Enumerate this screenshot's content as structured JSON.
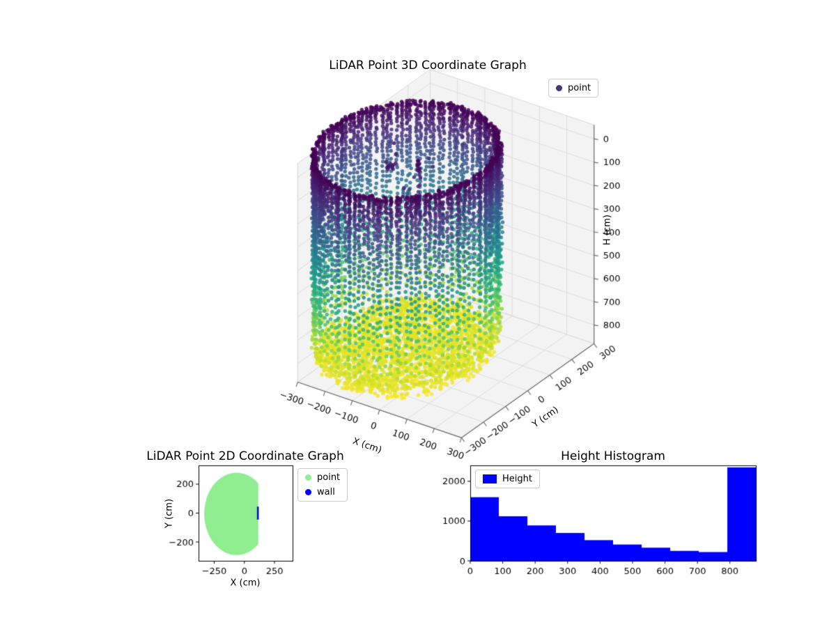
{
  "figure": {
    "background": "#ffffff"
  },
  "chart_data": [
    {
      "id": "lidar-3d",
      "type": "scatter3d",
      "title": "LiDAR Point 3D Coordinate Graph",
      "xlabel": "X (cm)",
      "ylabel": "Y (cm)",
      "zlabel": "H (cm)",
      "xticks": [
        -300,
        -200,
        -100,
        0,
        100,
        200,
        300
      ],
      "yticks": [
        -300,
        -200,
        -100,
        0,
        100,
        200,
        300
      ],
      "zticks": [
        0,
        100,
        200,
        300,
        400,
        500,
        600,
        700,
        800
      ],
      "zaxis_inverted": true,
      "legend": [
        {
          "label": "point",
          "marker_color": "#46327e"
        }
      ],
      "colormap": "viridis",
      "colormap_stops": [
        "#440154",
        "#482878",
        "#3e4a89",
        "#31688e",
        "#26828e",
        "#1f9e89",
        "#35b779",
        "#6ece58",
        "#b5de2b",
        "#fde725"
      ],
      "point_cloud": {
        "shape": "cylinder-wall-with-floor",
        "units": "cm",
        "center_x": -130,
        "center_y": -20,
        "radius": 265,
        "height_min": 0,
        "height_max": 815,
        "wall_strips": 120,
        "floor_height": 818,
        "floor_thickness": 55,
        "floor_points": 2300,
        "interior_noise_points": 18,
        "artifact_column": {
          "x": -60,
          "y": -50,
          "h_min": 0,
          "h_max": 250,
          "points": 35
        },
        "artifact_cluster": {
          "x": -150,
          "y": -60,
          "h": 60,
          "points": 10
        }
      },
      "pane_color": "#f3f3f3",
      "grid_color": "#dcdcdc",
      "axisline_color": "#6b6b6b"
    },
    {
      "id": "lidar-2d",
      "type": "scatter",
      "title": "LiDAR Point 2D Coordinate Graph",
      "xlabel": "X (cm)",
      "ylabel": "Y (cm)",
      "xticks": [
        -250,
        0,
        250
      ],
      "yticks": [
        200,
        0,
        -200
      ],
      "xlim": [
        -380,
        400
      ],
      "ylim": [
        -330,
        330
      ],
      "legend": [
        {
          "label": "point",
          "marker_color": "#90ee90"
        },
        {
          "label": "wall",
          "marker_color": "#0000ff"
        }
      ],
      "region": {
        "center_x": -65,
        "center_y": -5,
        "radius_x": 268,
        "radius_y": 285,
        "flat_x": 115,
        "color": "#90ee90"
      },
      "wall_segment": {
        "x": 112,
        "y_min": -45,
        "y_max": 45,
        "color": "#0000ff"
      }
    },
    {
      "id": "height-histogram",
      "type": "bar",
      "title": "Height Histogram",
      "legend": [
        {
          "label": "Height",
          "marker_color": "#0000ff"
        }
      ],
      "bar_color": "#0000ff",
      "bin_start": 0,
      "bin_width": 88,
      "bin_edges": [
        0,
        88,
        176,
        264,
        352,
        440,
        528,
        616,
        704,
        792,
        880
      ],
      "values": [
        1600,
        1120,
        890,
        700,
        520,
        410,
        330,
        250,
        220,
        2350
      ],
      "xticks": [
        0,
        100,
        200,
        300,
        400,
        500,
        600,
        700,
        800
      ],
      "yticks": [
        0,
        1000,
        2000
      ],
      "xlim": [
        0,
        880
      ],
      "ylim": [
        0,
        2400
      ]
    }
  ]
}
